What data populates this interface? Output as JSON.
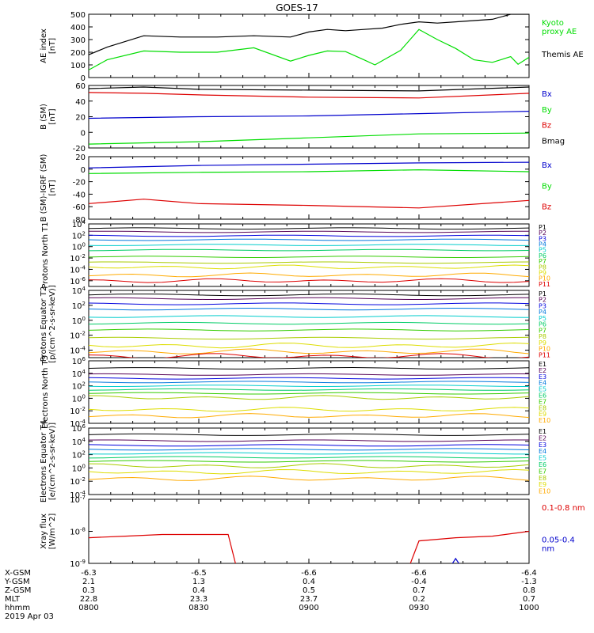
{
  "title": "GOES-17",
  "footer": {
    "date": "2019 Apr 03",
    "rows": [
      {
        "label": "X-GSM",
        "values": [
          "-6.3",
          "-6.5",
          "-6.6",
          "-6.6",
          "-6.4"
        ]
      },
      {
        "label": "Y-GSM",
        "values": [
          "2.1",
          "1.3",
          "0.4",
          "-0.4",
          "-1.3"
        ]
      },
      {
        "label": "Z-GSM",
        "values": [
          "0.3",
          "0.4",
          "0.5",
          "0.7",
          "0.8"
        ]
      },
      {
        "label": "MLT",
        "values": [
          "22.8",
          "23.3",
          "23.7",
          "0.2",
          "0.7"
        ]
      },
      {
        "label": "hhmm",
        "values": [
          "0800",
          "0830",
          "0900",
          "0930",
          "1000"
        ]
      }
    ]
  },
  "colors": {
    "black": "#000000",
    "green": "#00dd00",
    "blue": "#0000cc",
    "red": "#dd0000",
    "p_scale": [
      "#000000",
      "#550055",
      "#0000dd",
      "#0077dd",
      "#00cccc",
      "#00cc66",
      "#33cc00",
      "#aacc00",
      "#dddd00",
      "#ffaa00",
      "#dd0000",
      "#aa0000"
    ]
  },
  "chart_data": [
    {
      "id": "ae",
      "type": "line",
      "ylabel": "AE index [nT]",
      "ylim": [
        0,
        500
      ],
      "yticks": [
        "0",
        "100",
        "200",
        "300",
        "400",
        "500"
      ],
      "time_range": [
        "0800",
        "1000"
      ],
      "series": [
        {
          "name": "Kyoto proxy AE",
          "color": "green",
          "x_min": [
            0,
            5,
            15,
            25,
            35,
            45,
            55,
            60,
            65,
            70,
            75,
            78,
            85,
            90,
            95,
            100,
            105,
            110,
            115,
            117,
            120
          ],
          "y": [
            60,
            140,
            210,
            200,
            200,
            235,
            130,
            175,
            210,
            205,
            140,
            100,
            215,
            380,
            300,
            230,
            140,
            120,
            165,
            105,
            160
          ]
        },
        {
          "name": "Themis AE",
          "color": "black",
          "x_min": [
            0,
            5,
            15,
            25,
            35,
            45,
            55,
            60,
            65,
            70,
            75,
            80,
            85,
            90,
            95,
            100,
            105,
            110,
            115,
            120
          ],
          "y": [
            180,
            240,
            330,
            320,
            320,
            330,
            320,
            360,
            380,
            370,
            380,
            390,
            420,
            440,
            430,
            440,
            450,
            460,
            500,
            500
          ]
        }
      ]
    },
    {
      "id": "bsm",
      "type": "line",
      "ylabel": "B (SM) [nT]",
      "ylim": [
        -20,
        60
      ],
      "yticks": [
        "-20",
        "0",
        "20",
        "40",
        "60"
      ],
      "series": [
        {
          "name": "Bx",
          "color": "blue",
          "x_min": [
            0,
            30,
            60,
            90,
            120
          ],
          "y": [
            18,
            20,
            21,
            24,
            27
          ]
        },
        {
          "name": "By",
          "color": "green",
          "x_min": [
            0,
            30,
            60,
            90,
            120
          ],
          "y": [
            -15,
            -12,
            -7,
            -2,
            -1
          ]
        },
        {
          "name": "Bz",
          "color": "red",
          "x_min": [
            0,
            15,
            30,
            60,
            90,
            120
          ],
          "y": [
            51,
            50,
            48,
            45,
            44,
            50
          ]
        },
        {
          "name": "Bmag",
          "color": "black",
          "x_min": [
            0,
            15,
            30,
            60,
            90,
            120
          ],
          "y": [
            56,
            58,
            55,
            54,
            53,
            58
          ]
        }
      ]
    },
    {
      "id": "bigrf",
      "type": "line",
      "ylabel": "B (SM)-IGRF (SM) [nT]",
      "ylim": [
        -80,
        20
      ],
      "yticks": [
        "-80",
        "-60",
        "-40",
        "-20",
        "0",
        "20"
      ],
      "series": [
        {
          "name": "Bx",
          "color": "blue",
          "x_min": [
            0,
            30,
            60,
            90,
            120
          ],
          "y": [
            2,
            6,
            8,
            10,
            11
          ]
        },
        {
          "name": "By",
          "color": "green",
          "x_min": [
            0,
            30,
            60,
            90,
            120
          ],
          "y": [
            -7,
            -5,
            -4,
            -1,
            -4
          ]
        },
        {
          "name": "Bz",
          "color": "red",
          "x_min": [
            0,
            15,
            30,
            60,
            90,
            120
          ],
          "y": [
            -55,
            -48,
            -55,
            -58,
            -62,
            -50
          ]
        }
      ]
    },
    {
      "id": "protons_north",
      "type": "line",
      "ylabel": "Protons North T1",
      "ylog": true,
      "ylim_exp": [
        -7,
        4
      ],
      "yticks": [
        "10^4",
        "10^2",
        "10^0",
        "10^-2",
        "10^-4",
        "10^-6"
      ],
      "series_names": [
        "P1",
        "P2",
        "P3",
        "P4",
        "P5",
        "P6",
        "P7",
        "P8",
        "P9",
        "P10",
        "P11"
      ],
      "levels_exp": [
        3.2,
        2.6,
        1.9,
        1.2,
        0.3,
        -0.6,
        -1.8,
        -2.8,
        -3.6,
        -5.0,
        -6.0
      ]
    },
    {
      "id": "protons_equator",
      "type": "line",
      "ylabel": "Protons Equator T2 [p/(cm^2-s-sr-keV)]",
      "ylog": true,
      "ylim_exp": [
        -5,
        4
      ],
      "yticks": [
        "10^4",
        "10^2",
        "10^0",
        "10^-2",
        "10^-4"
      ],
      "series_names": [
        "P1",
        "P2",
        "P3",
        "P4",
        "P5",
        "P6",
        "P7",
        "P8",
        "P9",
        "P10",
        "P11"
      ],
      "levels_exp": [
        3.4,
        2.9,
        2.2,
        1.5,
        0.5,
        -0.4,
        -1.3,
        -2.4,
        -3.4,
        -4.2,
        -4.8
      ]
    },
    {
      "id": "electrons_north",
      "type": "line",
      "ylabel": "Electrons North T3",
      "ylog": true,
      "ylim_exp": [
        -4,
        6
      ],
      "yticks": [
        "10^6",
        "10^4",
        "10^2",
        "10^0",
        "10^-2",
        "10^-4"
      ],
      "series_names": [
        "E1",
        "E2",
        "E3",
        "E4",
        "E5",
        "E6",
        "E7",
        "E8",
        "E9",
        "E10"
      ],
      "levels_exp": [
        4.8,
        3.8,
        3.2,
        2.6,
        2.0,
        1.4,
        0.8,
        0.1,
        -1.8,
        -2.8
      ]
    },
    {
      "id": "electrons_equator",
      "type": "line",
      "ylabel": "Electrons Equator T4 [e/(cm^2-s-sr-keV)]",
      "ylog": true,
      "ylim_exp": [
        -4,
        6
      ],
      "yticks": [
        "10^6",
        "10^4",
        "10^2",
        "10^0",
        "10^-2",
        "10^-4"
      ],
      "series_names": [
        "E1",
        "E2",
        "E3",
        "E4",
        "E5",
        "E6",
        "E7",
        "E8",
        "E9",
        "E10"
      ],
      "levels_exp": [
        5.0,
        4.1,
        3.4,
        2.8,
        2.2,
        1.6,
        1.0,
        0.3,
        -0.6,
        -1.6
      ]
    },
    {
      "id": "xray",
      "type": "line",
      "ylabel": "Xray flux [W/m^2]",
      "ylog": true,
      "ylim_exp": [
        -9,
        -7
      ],
      "yticks": [
        "10^-7",
        "10^-8",
        "10^-9"
      ],
      "series": [
        {
          "name": "0.1-0.8 nm",
          "color": "red",
          "x_min": [
            0,
            10,
            20,
            30,
            38,
            40,
            41,
            87,
            88,
            90,
            100,
            110,
            120
          ],
          "y_exp": [
            -8.2,
            -8.15,
            -8.1,
            -8.1,
            -8.1,
            -9.0,
            -9.2,
            -9.2,
            -8.9,
            -8.3,
            -8.2,
            -8.15,
            -8.0
          ]
        },
        {
          "name": "0.05-0.4 nm",
          "color": "blue",
          "x_min": [
            98,
            100,
            102
          ],
          "y_exp": [
            -9.2,
            -8.85,
            -9.2
          ]
        }
      ]
    }
  ]
}
